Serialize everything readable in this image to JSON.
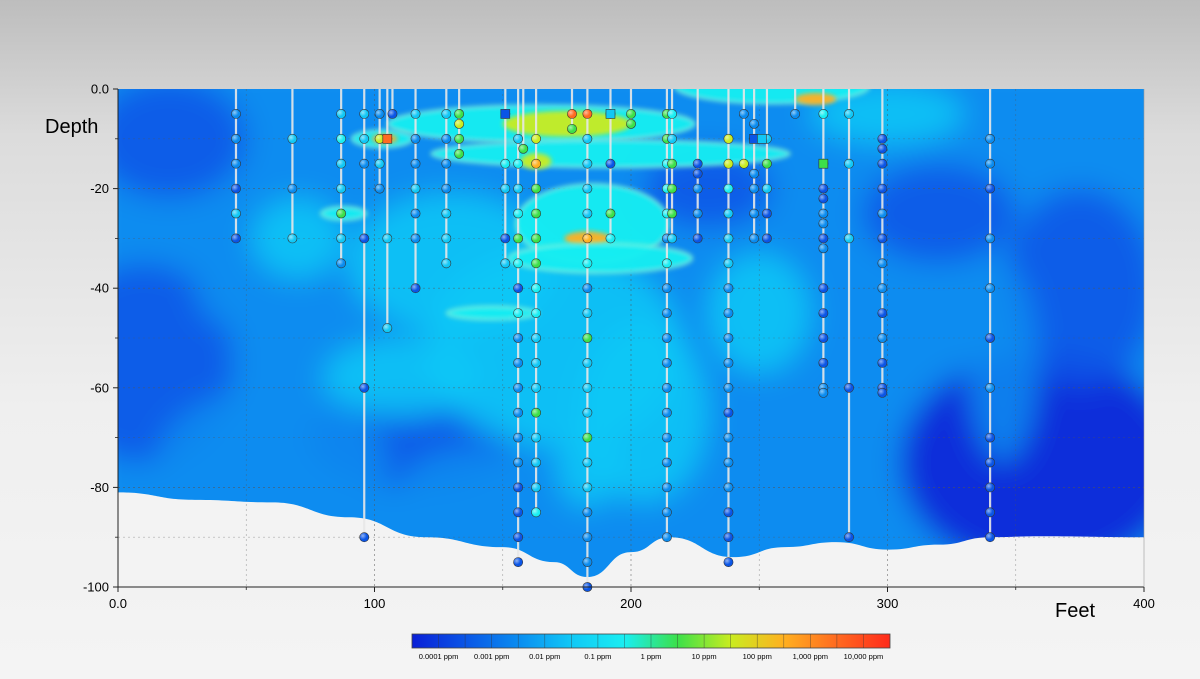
{
  "chart_data": {
    "type": "heatmap",
    "title": "",
    "xlabel": "Feet",
    "ylabel": "Depth",
    "xlim": [
      0,
      400
    ],
    "ylim": [
      -100,
      0
    ],
    "x_ticks": [
      0,
      100,
      200,
      300,
      400
    ],
    "x_tick_labels": [
      "0.0",
      "100",
      "200",
      "300",
      "400"
    ],
    "y_ticks": [
      0,
      -20,
      -40,
      -60,
      -80,
      -100
    ],
    "y_tick_labels": [
      "0.0",
      "-20",
      "-40",
      "-60",
      "-80",
      "-100"
    ],
    "minor_grid_x": [
      50,
      150,
      250,
      350
    ],
    "minor_grid_y": [
      -10,
      -30,
      -50,
      -70,
      -90
    ],
    "grid": true,
    "legend_placement": "bottom-center",
    "colorbar": {
      "labels": [
        "0.0001 ppm",
        "0.001 ppm",
        "0.01 ppm",
        "0.1 ppm",
        "1 ppm",
        "10 ppm",
        "100 ppm",
        "1,000 ppm",
        "10,000 ppm"
      ],
      "stops": [
        "#0a1fd6",
        "#0a55e6",
        "#0a8cf0",
        "#11c8f6",
        "#19eef2",
        "#3ce04a",
        "#c9ec20",
        "#ffb020",
        "#ff6a20",
        "#ff2a1a"
      ]
    },
    "concentration_codes": [
      "0.0001 ppm",
      "0.001 ppm",
      "0.01 ppm",
      "0.1 ppm",
      "1 ppm",
      "10 ppm",
      "100 ppm",
      "1,000 ppm",
      "10,000 ppm"
    ],
    "ground_surface": [
      [
        0,
        -81
      ],
      [
        30,
        -82.5
      ],
      [
        60,
        -83
      ],
      [
        90,
        -86
      ],
      [
        120,
        -90
      ],
      [
        150,
        -92
      ],
      [
        170,
        -95
      ],
      [
        183,
        -98
      ],
      [
        200,
        -93
      ],
      [
        215,
        -90
      ],
      [
        240,
        -94
      ],
      [
        260,
        -92
      ],
      [
        280,
        -91
      ],
      [
        300,
        -92.5
      ],
      [
        320,
        -91.5
      ],
      [
        340,
        -90
      ],
      [
        360,
        -89.8
      ],
      [
        400,
        -90
      ]
    ],
    "borings": [
      {
        "x": 46,
        "bottom": -30,
        "samples": [
          [
            -5,
            2
          ],
          [
            -10,
            2
          ],
          [
            -15,
            2
          ],
          [
            -20,
            1
          ],
          [
            -25,
            3
          ],
          [
            -30,
            1
          ]
        ]
      },
      {
        "x": 68,
        "bottom": -30,
        "samples": [
          [
            -10,
            3
          ],
          [
            -20,
            2
          ],
          [
            -30,
            3
          ]
        ]
      },
      {
        "x": 87,
        "bottom": -35,
        "samples": [
          [
            -5,
            3
          ],
          [
            -10,
            4
          ],
          [
            -15,
            3
          ],
          [
            -20,
            3
          ],
          [
            -25,
            5
          ],
          [
            -30,
            3
          ],
          [
            -35,
            2
          ]
        ]
      },
      {
        "x": 96,
        "bottom": -90,
        "samples": [
          [
            -5,
            3
          ],
          [
            -10,
            3
          ],
          [
            -15,
            2
          ],
          [
            -30,
            1
          ],
          [
            -60,
            1
          ],
          [
            -90,
            1
          ]
        ]
      },
      {
        "x": 102,
        "bottom": -20,
        "samples": [
          [
            -5,
            2
          ],
          [
            -10,
            6
          ],
          [
            -15,
            3
          ],
          [
            -20,
            2
          ]
        ]
      },
      {
        "x": 105,
        "bottom": -48,
        "samples": [
          [
            -10,
            8
          ],
          [
            -30,
            3
          ],
          [
            -48,
            3
          ]
        ]
      },
      {
        "x": 107,
        "bottom": -5,
        "samples": [
          [
            -5,
            1
          ]
        ]
      },
      {
        "x": 116,
        "bottom": -40,
        "samples": [
          [
            -5,
            3
          ],
          [
            -10,
            2
          ],
          [
            -15,
            2
          ],
          [
            -20,
            3
          ],
          [
            -25,
            2
          ],
          [
            -30,
            2
          ],
          [
            -40,
            1
          ]
        ]
      },
      {
        "x": 128,
        "bottom": -35,
        "samples": [
          [
            -5,
            3
          ],
          [
            -10,
            2
          ],
          [
            -15,
            2
          ],
          [
            -20,
            2
          ],
          [
            -25,
            3
          ],
          [
            -30,
            3
          ],
          [
            -35,
            3
          ]
        ]
      },
      {
        "x": 133,
        "bottom": -13,
        "samples": [
          [
            -5,
            5
          ],
          [
            -7,
            6
          ],
          [
            -10,
            5
          ],
          [
            -13,
            5
          ]
        ]
      },
      {
        "x": 151,
        "bottom": -35,
        "samples": [
          [
            -5,
            2
          ],
          [
            -15,
            4
          ],
          [
            -20,
            3
          ],
          [
            -30,
            1
          ],
          [
            -35,
            3
          ]
        ]
      },
      {
        "x": 156,
        "bottom": -95,
        "samples": [
          [
            -10,
            3
          ],
          [
            -15,
            4
          ],
          [
            -20,
            3
          ],
          [
            -25,
            4
          ],
          [
            -30,
            5
          ],
          [
            -35,
            4
          ],
          [
            -40,
            1
          ],
          [
            -45,
            4
          ],
          [
            -50,
            2
          ],
          [
            -55,
            2
          ],
          [
            -60,
            2
          ],
          [
            -65,
            2
          ],
          [
            -70,
            2
          ],
          [
            -75,
            2
          ],
          [
            -80,
            1
          ],
          [
            -85,
            1
          ],
          [
            -90,
            1
          ],
          [
            -95,
            1
          ]
        ]
      },
      {
        "x": 158,
        "bottom": -12,
        "samples": [
          [
            -12,
            5
          ]
        ]
      },
      {
        "x": 163,
        "bottom": -85,
        "samples": [
          [
            -10,
            6
          ],
          [
            -15,
            7
          ],
          [
            -20,
            5
          ],
          [
            -25,
            5
          ],
          [
            -30,
            5
          ],
          [
            -35,
            5
          ],
          [
            -40,
            4
          ],
          [
            -45,
            4
          ],
          [
            -50,
            3
          ],
          [
            -55,
            3
          ],
          [
            -60,
            3
          ],
          [
            -65,
            5
          ],
          [
            -70,
            3
          ],
          [
            -75,
            3
          ],
          [
            -80,
            3
          ],
          [
            -85,
            4
          ]
        ]
      },
      {
        "x": 177,
        "bottom": -8,
        "samples": [
          [
            -5,
            8
          ],
          [
            -8,
            5
          ]
        ]
      },
      {
        "x": 183,
        "bottom": -100,
        "samples": [
          [
            -5,
            8
          ],
          [
            -10,
            3
          ],
          [
            -15,
            3
          ],
          [
            -20,
            3
          ],
          [
            -25,
            3
          ],
          [
            -30,
            7
          ],
          [
            -35,
            4
          ],
          [
            -40,
            2
          ],
          [
            -45,
            3
          ],
          [
            -50,
            5
          ],
          [
            -55,
            3
          ],
          [
            -60,
            3
          ],
          [
            -65,
            3
          ],
          [
            -70,
            5
          ],
          [
            -75,
            3
          ],
          [
            -80,
            3
          ],
          [
            -85,
            2
          ],
          [
            -90,
            2
          ],
          [
            -95,
            2
          ],
          [
            -100,
            1
          ]
        ]
      },
      {
        "x": 192,
        "bottom": -30,
        "samples": [
          [
            -5,
            3
          ],
          [
            -15,
            1
          ],
          [
            -25,
            5
          ],
          [
            -30,
            4
          ]
        ]
      },
      {
        "x": 200,
        "bottom": -7,
        "samples": [
          [
            -5,
            5
          ],
          [
            -7,
            5
          ]
        ]
      },
      {
        "x": 214,
        "bottom": -90,
        "samples": [
          [
            -5,
            5
          ],
          [
            -10,
            5
          ],
          [
            -15,
            4
          ],
          [
            -20,
            4
          ],
          [
            -25,
            4
          ],
          [
            -30,
            2
          ],
          [
            -35,
            4
          ],
          [
            -40,
            2
          ],
          [
            -45,
            2
          ],
          [
            -50,
            2
          ],
          [
            -55,
            2
          ],
          [
            -60,
            2
          ],
          [
            -65,
            2
          ],
          [
            -70,
            2
          ],
          [
            -75,
            2
          ],
          [
            -80,
            2
          ],
          [
            -85,
            2
          ],
          [
            -90,
            2
          ]
        ]
      },
      {
        "x": 216,
        "bottom": -30,
        "samples": [
          [
            -5,
            4
          ],
          [
            -10,
            3
          ],
          [
            -15,
            5
          ],
          [
            -20,
            5
          ],
          [
            -25,
            5
          ],
          [
            -30,
            3
          ]
        ]
      },
      {
        "x": 226,
        "bottom": -30,
        "samples": [
          [
            -15,
            1
          ],
          [
            -17,
            1
          ],
          [
            -20,
            2
          ],
          [
            -25,
            2
          ],
          [
            -30,
            1
          ]
        ]
      },
      {
        "x": 238,
        "bottom": -95,
        "samples": [
          [
            -10,
            6
          ],
          [
            -15,
            6
          ],
          [
            -20,
            4
          ],
          [
            -25,
            3
          ],
          [
            -30,
            3
          ],
          [
            -35,
            3
          ],
          [
            -40,
            2
          ],
          [
            -45,
            2
          ],
          [
            -50,
            2
          ],
          [
            -55,
            2
          ],
          [
            -60,
            2
          ],
          [
            -65,
            1
          ],
          [
            -70,
            2
          ],
          [
            -75,
            2
          ],
          [
            -80,
            2
          ],
          [
            -85,
            1
          ],
          [
            -90,
            1
          ],
          [
            -95,
            1
          ]
        ]
      },
      {
        "x": 244,
        "bottom": -15,
        "samples": [
          [
            -5,
            2
          ],
          [
            -15,
            6
          ]
        ]
      },
      {
        "x": 248,
        "bottom": -30,
        "samples": [
          [
            -7,
            2
          ],
          [
            -10,
            2
          ],
          [
            -17,
            2
          ],
          [
            -20,
            2
          ],
          [
            -25,
            2
          ],
          [
            -30,
            2
          ]
        ]
      },
      {
        "x": 253,
        "bottom": -30,
        "samples": [
          [
            -10,
            3
          ],
          [
            -15,
            5
          ],
          [
            -20,
            3
          ],
          [
            -25,
            1
          ],
          [
            -30,
            1
          ]
        ]
      },
      {
        "x": 264,
        "bottom": -5,
        "samples": [
          [
            -5,
            2
          ]
        ]
      },
      {
        "x": 275,
        "bottom": -61,
        "samples": [
          [
            -5,
            4
          ],
          [
            -15,
            6
          ],
          [
            -20,
            1
          ],
          [
            -22,
            1
          ],
          [
            -25,
            2
          ],
          [
            -27,
            2
          ],
          [
            -30,
            1
          ],
          [
            -32,
            2
          ],
          [
            -40,
            1
          ],
          [
            -45,
            1
          ],
          [
            -50,
            1
          ],
          [
            -55,
            1
          ],
          [
            -60,
            2
          ],
          [
            -61,
            2
          ]
        ]
      },
      {
        "x": 285,
        "bottom": -90,
        "samples": [
          [
            -5,
            3
          ],
          [
            -15,
            3
          ],
          [
            -30,
            3
          ],
          [
            -60,
            1
          ],
          [
            -90,
            1
          ]
        ]
      },
      {
        "x": 298,
        "bottom": -61,
        "samples": [
          [
            -10,
            1
          ],
          [
            -12,
            1
          ],
          [
            -15,
            1
          ],
          [
            -20,
            1
          ],
          [
            -25,
            2
          ],
          [
            -30,
            1
          ],
          [
            -35,
            2
          ],
          [
            -40,
            2
          ],
          [
            -45,
            1
          ],
          [
            -50,
            2
          ],
          [
            -55,
            1
          ],
          [
            -60,
            1
          ],
          [
            -61,
            1
          ]
        ]
      },
      {
        "x": 340,
        "bottom": -90,
        "samples": [
          [
            -10,
            2
          ],
          [
            -15,
            2
          ],
          [
            -20,
            1
          ],
          [
            -30,
            2
          ],
          [
            -40,
            2
          ],
          [
            -50,
            1
          ],
          [
            -60,
            2
          ],
          [
            -70,
            1
          ],
          [
            -75,
            1
          ],
          [
            -80,
            1
          ],
          [
            -85,
            1
          ],
          [
            -90,
            1
          ]
        ]
      }
    ],
    "square_markers": [
      {
        "x": 105,
        "y": -10,
        "code": 8
      },
      {
        "x": 151,
        "y": -5,
        "code": 1
      },
      {
        "x": 192,
        "y": -5,
        "code": 3
      },
      {
        "x": 248,
        "y": -10,
        "code": 1
      },
      {
        "x": 251,
        "y": -10,
        "code": 3
      },
      {
        "x": 275,
        "y": -15,
        "code": 5
      }
    ],
    "plumes": [
      {
        "cx": 255,
        "cy": 0.5,
        "rx": 38,
        "ry": 3.5,
        "code": 4
      },
      {
        "cx": 272,
        "cy": -2,
        "rx": 8,
        "ry": 1.2,
        "code": 7
      },
      {
        "cx": 165,
        "cy": -7,
        "rx": 60,
        "ry": 3.8,
        "code": 4
      },
      {
        "cx": 175,
        "cy": -7,
        "rx": 25,
        "ry": 2.6,
        "code": 6
      },
      {
        "cx": 103,
        "cy": -10,
        "rx": 12,
        "ry": 1.8,
        "code": 4
      },
      {
        "cx": 104,
        "cy": -10,
        "rx": 5,
        "ry": 0.9,
        "code": 7
      },
      {
        "cx": 192,
        "cy": -13,
        "rx": 70,
        "ry": 2.8,
        "code": 4
      },
      {
        "cx": 163,
        "cy": -14.5,
        "rx": 6,
        "ry": 1.6,
        "code": 6
      },
      {
        "cx": 185,
        "cy": -27,
        "rx": 30,
        "ry": 8,
        "code": 4
      },
      {
        "cx": 183,
        "cy": -30,
        "rx": 9,
        "ry": 1.4,
        "code": 7
      },
      {
        "cx": 188,
        "cy": -34,
        "rx": 36,
        "ry": 3,
        "code": 4
      },
      {
        "cx": 88,
        "cy": -25,
        "rx": 9,
        "ry": 1.4,
        "code": 4
      },
      {
        "cx": 146,
        "cy": -45,
        "rx": 18,
        "ry": 1.4,
        "code": 4
      }
    ]
  }
}
